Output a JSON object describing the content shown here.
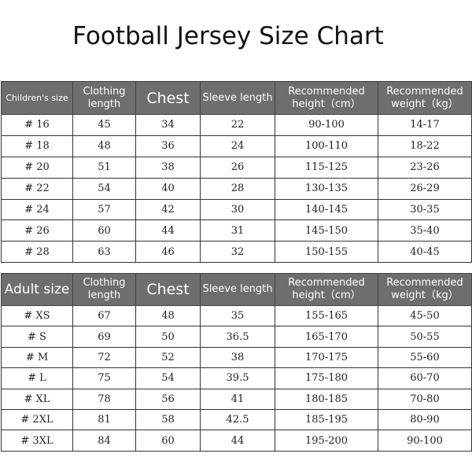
{
  "title": "Football Jersey Size Chart",
  "tables": [
    {
      "header": [
        "Children's size",
        "Clothing length",
        "Chest",
        "Sleeve length",
        "Recommended height（cm）",
        "Recommended weight（kg）"
      ],
      "rows": [
        [
          "# 16",
          "45",
          "34",
          "22",
          "90-100",
          "14-17"
        ],
        [
          "# 18",
          "48",
          "36",
          "24",
          "100-110",
          "18-22"
        ],
        [
          "# 20",
          "51",
          "38",
          "26",
          "115-125",
          "23-26"
        ],
        [
          "# 22",
          "54",
          "40",
          "28",
          "130-135",
          "26-29"
        ],
        [
          "# 24",
          "57",
          "42",
          "30",
          "140-145",
          "30-35"
        ],
        [
          "# 26",
          "60",
          "44",
          "31",
          "145-150",
          "35-40"
        ],
        [
          "# 28",
          "63",
          "46",
          "32",
          "150-155",
          "40-45"
        ]
      ]
    },
    {
      "header": [
        "Adult size",
        "Clothing length",
        "Chest",
        "Sleeve length",
        "Recommended height（cm）",
        "Recommended weight（kg）"
      ],
      "rows": [
        [
          "# XS",
          "67",
          "48",
          "35",
          "155-165",
          "45-50"
        ],
        [
          "# S",
          "69",
          "50",
          "36.5",
          "165-170",
          "50-55"
        ],
        [
          "# M",
          "72",
          "52",
          "38",
          "170-175",
          "55-60"
        ],
        [
          "# L",
          "75",
          "54",
          "39.5",
          "175-180",
          "60-70"
        ],
        [
          "# XL",
          "78",
          "56",
          "41",
          "180-185",
          "70-80"
        ],
        [
          "# 2XL",
          "81",
          "58",
          "42.5",
          "185-195",
          "80-90"
        ],
        [
          "# 3XL",
          "84",
          "60",
          "44",
          "195-200",
          "90-100"
        ]
      ]
    }
  ]
}
